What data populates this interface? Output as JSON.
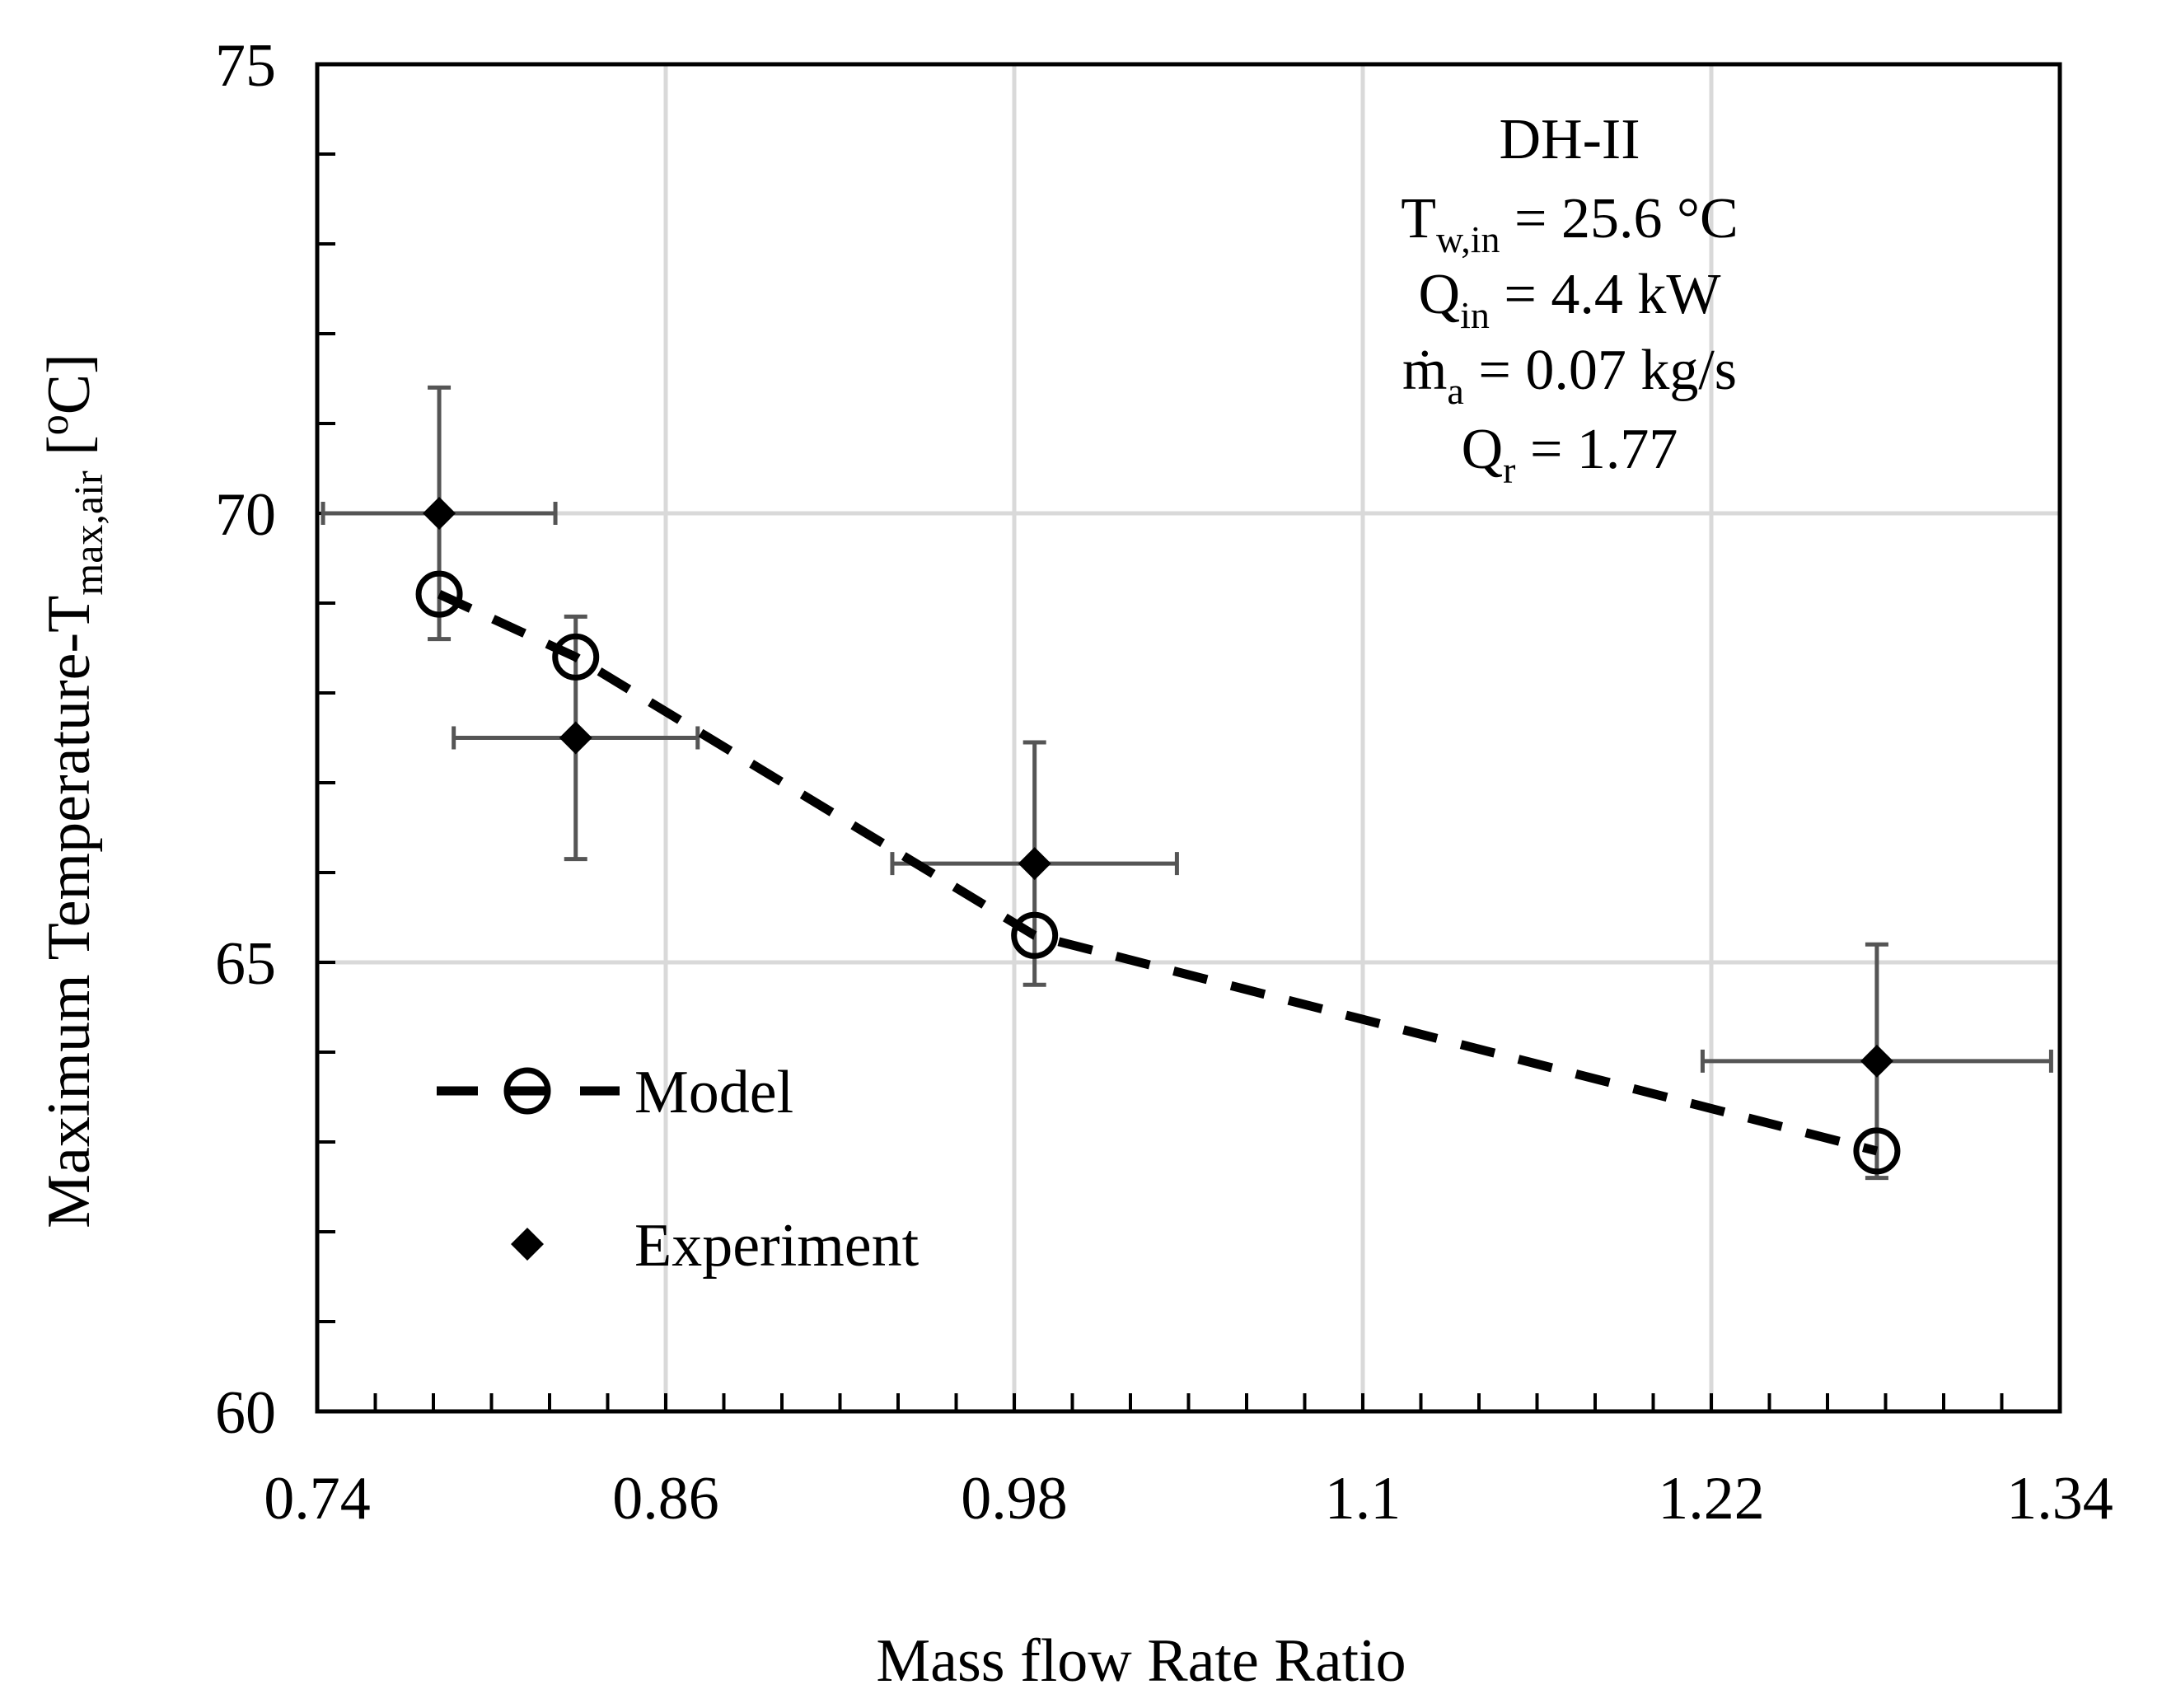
{
  "chart_data": {
    "type": "scatter",
    "title": "",
    "xlabel": "Mass flow Rate Ratio",
    "ylabel": {
      "main": "Maximum Temperature-T",
      "sub": "max,air",
      "unit_open": " [",
      "unit_sup": "o",
      "unit_close": "C]"
    },
    "xlim": [
      0.74,
      1.34
    ],
    "ylim": [
      60,
      75
    ],
    "x_ticks": [
      0.74,
      0.86,
      0.98,
      1.1,
      1.22,
      1.34
    ],
    "x_tick_labels": [
      "0.74",
      "0.86",
      "0.98",
      "1.1",
      "1.22",
      "1.34"
    ],
    "y_ticks": [
      60,
      65,
      70,
      75
    ],
    "y_tick_labels": [
      "60",
      "65",
      "70",
      "75"
    ],
    "x_minor_step": 0.02,
    "y_minor_step": 1,
    "grid": true,
    "legend_position": "bottom-left",
    "series": [
      {
        "name": "Model",
        "style": "dashed-line-open-circle",
        "x": [
          0.782,
          0.829,
          0.987,
          1.277
        ],
        "y": [
          69.1,
          68.4,
          65.3,
          62.9
        ]
      },
      {
        "name": "Experiment",
        "style": "filled-diamond-errorbars",
        "x": [
          0.782,
          0.829,
          0.987,
          1.277
        ],
        "y": [
          70.0,
          67.5,
          66.1,
          63.9
        ],
        "x_err": [
          0.04,
          0.042,
          0.049,
          0.06
        ],
        "y_err": [
          1.4,
          1.35,
          1.35,
          1.3
        ]
      }
    ],
    "annotation": {
      "line1": "DH-II",
      "line2": {
        "pre": "T",
        "sub": "w,in",
        "post": " = 25.6 °C"
      },
      "line3": {
        "pre": "Q",
        "sub": "in",
        "post": " = 4.4 kW"
      },
      "line4": {
        "pre": "ṁ",
        "sub": "a",
        "post": " = 0.07 kg/s"
      },
      "line5": {
        "pre": "Q",
        "sub": "r",
        "post": " = 1.77"
      }
    }
  }
}
